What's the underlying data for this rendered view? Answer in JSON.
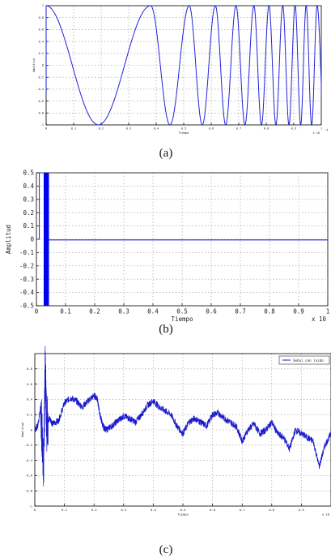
{
  "captions": {
    "a": "(a)",
    "b": "(b)",
    "c": "(c)"
  },
  "colors": {
    "line": "#2222dd",
    "bar": "#0000ee",
    "noise": "#1a1acc"
  },
  "chart_data": [
    {
      "id": "a",
      "type": "line",
      "xlabel": "Tiempo",
      "ylabel": "Amplitud",
      "xlim": [
        -5e-05,
        1.0
      ],
      "ylim": [
        -1,
        1
      ],
      "xticks": [
        0,
        0.1,
        0.2,
        0.3,
        0.4,
        0.5,
        0.6,
        0.7,
        0.8,
        0.9,
        1
      ],
      "xtick_labels": [
        "0",
        "0.1",
        "0.2",
        "0.3",
        "0.4",
        "0.5",
        "0.6",
        "0.7",
        "0.8",
        "0.9",
        "1"
      ],
      "yticks": [
        -1,
        -0.8,
        -0.6,
        -0.4,
        -0.2,
        0,
        0.2,
        0.4,
        0.6,
        0.8,
        1
      ],
      "ytick_labels": [
        "-1",
        "-0.8",
        "-0.6",
        "-0.4",
        "-0.2",
        "0",
        "0.2",
        "0.4",
        "0.6",
        "0.8",
        "1"
      ],
      "exponent_label": "x 10",
      "exponent_power": "-4",
      "grid": true,
      "description_series": {
        "name": "",
        "kind": "chirp",
        "amplitude": 1,
        "baseline_before": 0,
        "start_x": 0,
        "end_x": 1,
        "cycles_peak_positions": [
          0,
          0.38,
          0.52,
          0.615,
          0.69,
          0.755,
          0.81,
          0.86,
          0.905,
          0.945,
          0.985
        ]
      }
    },
    {
      "id": "b",
      "type": "line",
      "xlabel": "Tiempo",
      "ylabel": "Amplitud",
      "xlim": [
        0,
        1
      ],
      "ylim": [
        -0.5,
        0.5
      ],
      "xticks": [
        0,
        0.1,
        0.2,
        0.3,
        0.4,
        0.5,
        0.6,
        0.7,
        0.8,
        0.9,
        1
      ],
      "xtick_labels": [
        "0",
        "0.1",
        "0.2",
        "0.3",
        "0.4",
        "0.5",
        "0.6",
        "0.7",
        "0.8",
        "0.9",
        "1"
      ],
      "yticks": [
        -0.5,
        -0.4,
        -0.3,
        -0.2,
        -0.1,
        0,
        0.1,
        0.2,
        0.3,
        0.4,
        0.5
      ],
      "ytick_labels": [
        "-0.5",
        "-0.4",
        "-0.3",
        "-0.2",
        "-0.1",
        "0",
        "0.1",
        "0.2",
        "0.3",
        "0.4",
        "0.5"
      ],
      "exponent_label": "x 10",
      "exponent_power": "-4",
      "grid": true,
      "burst": {
        "x_start": 0.025,
        "x_end": 0.043,
        "ymin": -0.5,
        "ymax": 0.5
      },
      "baseline_before": 0.0,
      "baseline_after": -0.005,
      "step_at": 0.01
    },
    {
      "id": "c",
      "type": "line",
      "xlabel": "Tiempo",
      "ylabel": "Amplitud",
      "xlim": [
        0,
        1
      ],
      "ylim": [
        -1,
        1
      ],
      "xticks": [
        0,
        0.1,
        0.2,
        0.3,
        0.4,
        0.5,
        0.6,
        0.7,
        0.8,
        0.9
      ],
      "xtick_labels": [
        "0",
        "0.1",
        "0.2",
        "0.3",
        "0.4",
        "0.5",
        "0.6",
        "0.7",
        "0.8",
        "0.9"
      ],
      "yticks": [
        -1,
        -0.8,
        -0.6,
        -0.4,
        -0.2,
        0,
        0.2,
        0.4,
        0.6,
        0.8
      ],
      "ytick_labels": [
        "-1",
        "-0.8",
        "-0.6",
        "-0.4",
        "-0.2",
        "0",
        "0.2",
        "0.4",
        "0.6",
        "0.8"
      ],
      "exponent_label": "x 10",
      "exponent_power": "-4",
      "grid": true,
      "legend": {
        "entry": "Señal con ruido",
        "placement": "top-right"
      },
      "series": [
        {
          "name": "Señal con ruido",
          "x": [
            0,
            0.01,
            0.02,
            0.03,
            0.035,
            0.04,
            0.05,
            0.06,
            0.08,
            0.1,
            0.12,
            0.14,
            0.16,
            0.18,
            0.2,
            0.21,
            0.22,
            0.23,
            0.24,
            0.26,
            0.28,
            0.3,
            0.32,
            0.34,
            0.36,
            0.38,
            0.4,
            0.42,
            0.44,
            0.46,
            0.48,
            0.5,
            0.52,
            0.54,
            0.56,
            0.58,
            0.6,
            0.62,
            0.64,
            0.66,
            0.68,
            0.7,
            0.72,
            0.74,
            0.76,
            0.78,
            0.8,
            0.82,
            0.84,
            0.86,
            0.88,
            0.9,
            0.92,
            0.94,
            0.96,
            0.98,
            1.0
          ],
          "y": [
            0.0,
            0.05,
            0.3,
            -0.45,
            0.85,
            0.1,
            0.15,
            0.08,
            0.12,
            0.35,
            0.42,
            0.38,
            0.3,
            0.38,
            0.45,
            0.42,
            0.2,
            0.05,
            0.0,
            0.05,
            0.12,
            0.18,
            0.15,
            0.1,
            0.2,
            0.32,
            0.38,
            0.3,
            0.25,
            0.2,
            0.05,
            -0.05,
            0.1,
            0.15,
            0.1,
            0.05,
            0.2,
            0.22,
            0.15,
            0.1,
            0.05,
            -0.15,
            0.0,
            0.08,
            -0.05,
            0.0,
            0.1,
            -0.05,
            -0.1,
            -0.25,
            0.0,
            -0.05,
            -0.1,
            -0.15,
            -0.48,
            -0.2,
            -0.05
          ]
        }
      ]
    }
  ]
}
